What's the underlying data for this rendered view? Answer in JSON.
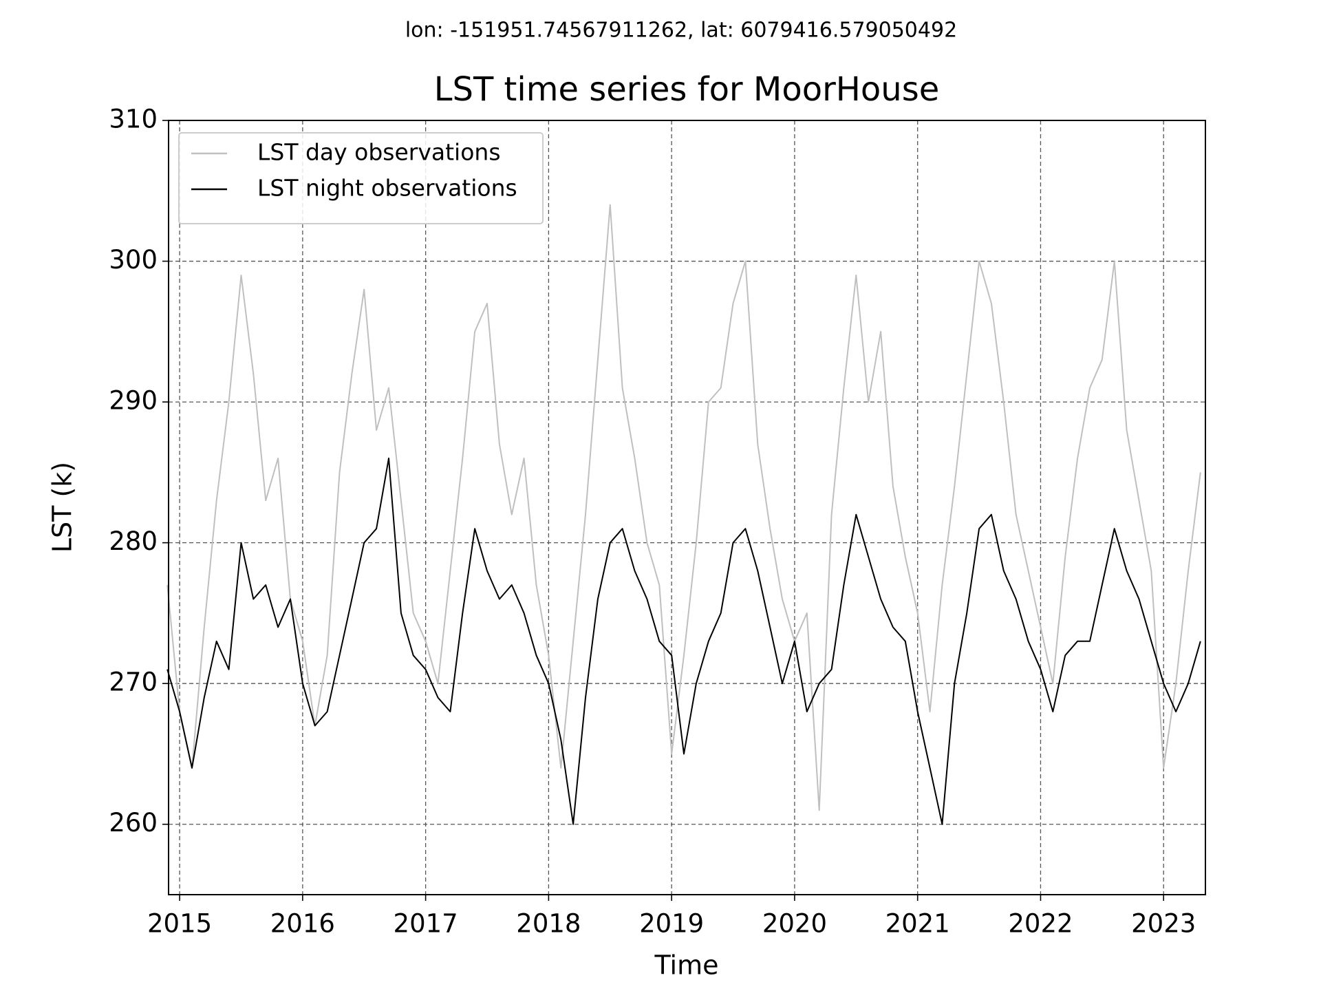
{
  "chart_data": {
    "type": "line",
    "subtitle": "lon: -151951.74567911262, lat: 6079416.579050492",
    "title": "LST time series for MoorHouse",
    "x_label": "Time",
    "y_label": "LST (k)",
    "x": [
      2014.9,
      2015.0,
      2015.1,
      2015.2,
      2015.3,
      2015.4,
      2015.5,
      2015.6,
      2015.7,
      2015.8,
      2015.9,
      2016.0,
      2016.1,
      2016.2,
      2016.3,
      2016.4,
      2016.5,
      2016.6,
      2016.7,
      2016.8,
      2016.9,
      2017.0,
      2017.1,
      2017.2,
      2017.3,
      2017.4,
      2017.5,
      2017.6,
      2017.7,
      2017.8,
      2017.9,
      2018.0,
      2018.1,
      2018.2,
      2018.3,
      2018.4,
      2018.5,
      2018.6,
      2018.7,
      2018.8,
      2018.9,
      2019.0,
      2019.1,
      2019.2,
      2019.3,
      2019.4,
      2019.5,
      2019.6,
      2019.7,
      2019.8,
      2019.9,
      2020.0,
      2020.1,
      2020.2,
      2020.3,
      2020.4,
      2020.5,
      2020.6,
      2020.7,
      2020.8,
      2020.9,
      2021.0,
      2021.1,
      2021.2,
      2021.3,
      2021.4,
      2021.5,
      2021.6,
      2021.7,
      2021.8,
      2021.9,
      2022.0,
      2022.1,
      2022.2,
      2022.3,
      2022.4,
      2022.5,
      2022.6,
      2022.7,
      2022.8,
      2022.9,
      2023.0,
      2023.1,
      2023.2,
      2023.3
    ],
    "series": [
      {
        "name": "LST day observations",
        "color": "#bfbfbf",
        "values": [
          277,
          268,
          264,
          274,
          283,
          290,
          299,
          292,
          283,
          286,
          276,
          273,
          267,
          272,
          285,
          292,
          298,
          288,
          291,
          283,
          275,
          273,
          270,
          278,
          286,
          295,
          297,
          287,
          282,
          286,
          277,
          272,
          264,
          273,
          282,
          293,
          304,
          291,
          286,
          280,
          277,
          265,
          272,
          280,
          290,
          291,
          297,
          300,
          287,
          281,
          276,
          273,
          275,
          261,
          282,
          291,
          299,
          290,
          295,
          284,
          279,
          275,
          268,
          277,
          284,
          292,
          300,
          297,
          290,
          282,
          278,
          274,
          270,
          279,
          286,
          291,
          293,
          300,
          288,
          283,
          278,
          264,
          270,
          278,
          285
        ]
      },
      {
        "name": "LST night observations",
        "color": "#000000",
        "values": [
          271,
          268,
          264,
          269,
          273,
          271,
          280,
          276,
          277,
          274,
          276,
          270,
          267,
          268,
          272,
          276,
          280,
          281,
          286,
          275,
          272,
          271,
          269,
          268,
          275,
          281,
          278,
          276,
          277,
          275,
          272,
          270,
          266,
          260,
          269,
          276,
          280,
          281,
          278,
          276,
          273,
          272,
          265,
          270,
          273,
          275,
          280,
          281,
          278,
          274,
          270,
          273,
          268,
          270,
          271,
          277,
          282,
          279,
          276,
          274,
          273,
          268,
          264,
          260,
          270,
          275,
          281,
          282,
          278,
          276,
          273,
          271,
          268,
          272,
          273,
          273,
          277,
          281,
          278,
          276,
          273,
          270,
          268,
          270,
          273
        ]
      }
    ],
    "xlim": [
      2014.91,
      2023.34
    ],
    "xticks": [
      2015,
      2016,
      2017,
      2018,
      2019,
      2020,
      2021,
      2022,
      2023
    ],
    "ylim": [
      255,
      310
    ],
    "yticks": [
      260,
      270,
      280,
      290,
      300,
      310
    ],
    "grid": true,
    "legend": "upper left"
  }
}
